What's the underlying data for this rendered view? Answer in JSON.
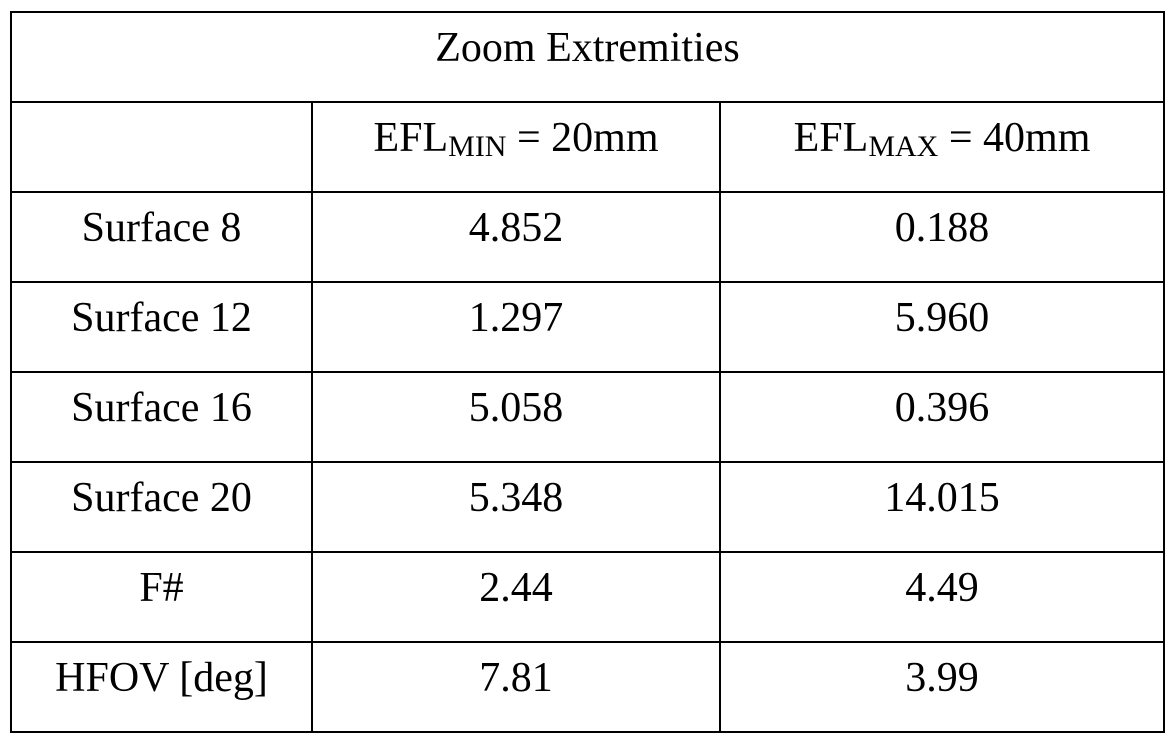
{
  "table": {
    "title": "Zoom Extremities",
    "headers": [
      {
        "label": ""
      },
      {
        "prefix": "EFL",
        "subscript": "MIN",
        "suffix": " = 20mm"
      },
      {
        "prefix": "EFL",
        "subscript": "MAX",
        "suffix": " = 40mm"
      }
    ],
    "rows": [
      {
        "label": "Surface 8",
        "min": "4.852",
        "max": "0.188"
      },
      {
        "label": "Surface 12",
        "min": "1.297",
        "max": "5.960"
      },
      {
        "label": "Surface 16",
        "min": "5.058",
        "max": "0.396"
      },
      {
        "label": "Surface 20",
        "min": "5.348",
        "max": "14.015"
      },
      {
        "label": "F#",
        "min": "2.44",
        "max": "4.49"
      },
      {
        "label": "HFOV [deg]",
        "min": "7.81",
        "max": "3.99"
      }
    ]
  }
}
